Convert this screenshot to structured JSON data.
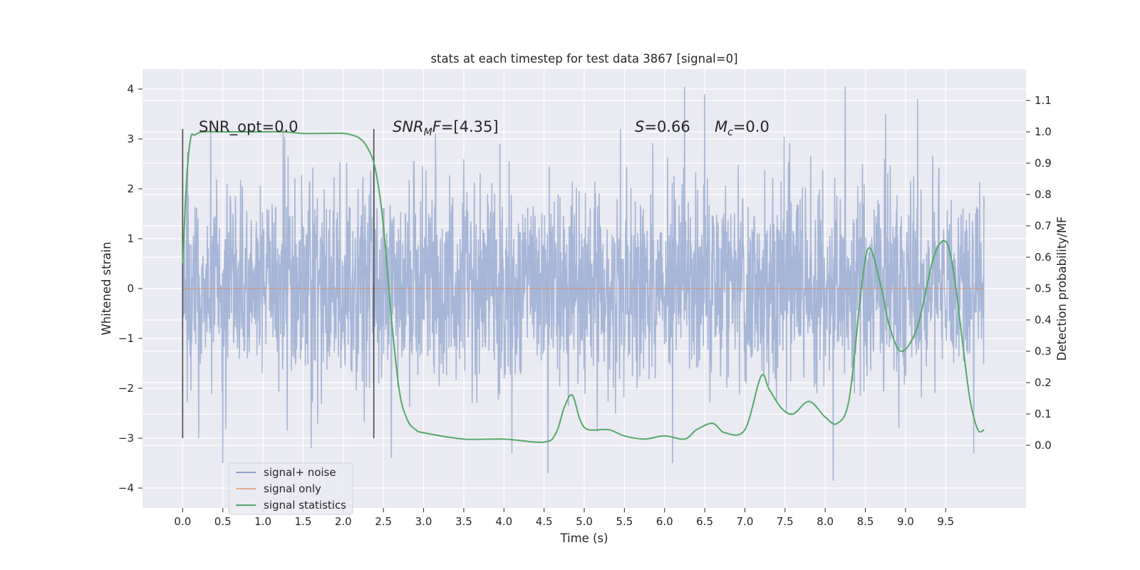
{
  "chart_data": {
    "type": "line",
    "title": "stats at each timestep for test data 3867 [signal=0]",
    "xlabel": "Time (s)",
    "ylabel_left": "Whitened strain",
    "ylabel_right": "Detection probability/MF",
    "xlim": [
      -0.5,
      10.5
    ],
    "ylim_left": [
      -4.4,
      4.4
    ],
    "ylim_right": [
      -0.2,
      1.2
    ],
    "x_ticks": [
      "0.0",
      "0.5",
      "1.0",
      "1.5",
      "2.0",
      "2.5",
      "3.0",
      "3.5",
      "4.0",
      "4.5",
      "5.0",
      "5.5",
      "6.0",
      "6.5",
      "7.0",
      "7.5",
      "8.0",
      "8.5",
      "9.0",
      "9.5"
    ],
    "y_ticks_left": [
      "−4",
      "−3",
      "−2",
      "−1",
      "0",
      "1",
      "2",
      "3",
      "4"
    ],
    "y_ticks_right": [
      "0.0",
      "0.1",
      "0.2",
      "0.3",
      "0.4",
      "0.5",
      "0.6",
      "0.7",
      "0.8",
      "0.9",
      "1.0",
      "1.1"
    ],
    "grid": true,
    "legend_position": "lower-left",
    "series": [
      {
        "name": "signal+ noise",
        "color": "#8fa4cc",
        "noise_envelope": {
          "x_range": [
            0.0,
            9.98
          ],
          "typical_band": [
            -1.8,
            2.0
          ],
          "extreme_range": [
            -3.85,
            4.05
          ],
          "notable_peaks": [
            {
              "x": 0.2,
              "y": -3.0
            },
            {
              "x": 0.35,
              "y": 3.3
            },
            {
              "x": 0.5,
              "y": -3.5
            },
            {
              "x": 1.25,
              "y": 3.2
            },
            {
              "x": 1.6,
              "y": -3.2
            },
            {
              "x": 2.6,
              "y": -3.4
            },
            {
              "x": 3.95,
              "y": 2.9
            },
            {
              "x": 4.1,
              "y": -3.3
            },
            {
              "x": 4.55,
              "y": -3.7
            },
            {
              "x": 5.45,
              "y": 3.2
            },
            {
              "x": 6.1,
              "y": -3.5
            },
            {
              "x": 6.25,
              "y": 4.05
            },
            {
              "x": 6.5,
              "y": 3.9
            },
            {
              "x": 8.1,
              "y": -3.85
            },
            {
              "x": 8.25,
              "y": 4.05
            },
            {
              "x": 8.75,
              "y": 3.5
            },
            {
              "x": 9.15,
              "y": 3.8
            },
            {
              "x": 9.85,
              "y": -3.3
            }
          ]
        }
      },
      {
        "name": "signal only",
        "color": "#dd8452",
        "x": [
          0.0,
          9.98
        ],
        "y": [
          0.0,
          0.0
        ]
      },
      {
        "name": "signal statistics",
        "color": "#55a868",
        "axis": "right",
        "x": [
          0.0,
          0.05,
          0.1,
          0.15,
          0.25,
          0.5,
          0.75,
          1.0,
          1.25,
          1.5,
          1.75,
          2.0,
          2.1,
          2.2,
          2.3,
          2.4,
          2.5,
          2.6,
          2.7,
          2.8,
          2.9,
          3.0,
          3.5,
          4.0,
          4.5,
          4.65,
          4.75,
          4.85,
          4.95,
          5.05,
          5.3,
          5.5,
          5.75,
          6.0,
          6.25,
          6.4,
          6.6,
          6.75,
          7.0,
          7.2,
          7.3,
          7.45,
          7.6,
          7.8,
          8.0,
          8.15,
          8.3,
          8.45,
          8.55,
          8.7,
          8.8,
          8.95,
          9.15,
          9.35,
          9.5,
          9.6,
          9.7,
          9.8,
          9.9,
          9.98
        ],
        "y": [
          0.58,
          0.85,
          0.98,
          0.99,
          1.0,
          1.0,
          1.0,
          1.0,
          1.0,
          0.995,
          0.995,
          0.995,
          0.99,
          0.98,
          0.95,
          0.88,
          0.7,
          0.4,
          0.17,
          0.08,
          0.05,
          0.04,
          0.02,
          0.02,
          0.01,
          0.04,
          0.12,
          0.16,
          0.08,
          0.05,
          0.05,
          0.03,
          0.02,
          0.03,
          0.02,
          0.05,
          0.07,
          0.04,
          0.05,
          0.22,
          0.18,
          0.12,
          0.1,
          0.14,
          0.09,
          0.07,
          0.15,
          0.5,
          0.63,
          0.5,
          0.38,
          0.3,
          0.38,
          0.6,
          0.65,
          0.55,
          0.35,
          0.15,
          0.05,
          0.05
        ]
      }
    ],
    "vertical_lines": [
      0.0,
      2.38
    ],
    "annotations": [
      {
        "id": "snr_opt",
        "text": "SNR_opt=0.0"
      },
      {
        "id": "snr_mf",
        "italic": "SNR",
        "sub": "M",
        "italic2": "F",
        "rest": "=[4.35]"
      },
      {
        "id": "s_val",
        "italic": "S",
        "rest": "=0.66"
      },
      {
        "id": "mc_val",
        "italic": "M",
        "sub": "c",
        "rest": "=0.0"
      }
    ],
    "colors": {
      "plot_bg": "#eaeaf2",
      "grid": "#ffffff",
      "noise": "#8fa4cc",
      "signal_only": "#dd8452",
      "statistics": "#55a868",
      "vline": "#4a4a4a"
    }
  }
}
